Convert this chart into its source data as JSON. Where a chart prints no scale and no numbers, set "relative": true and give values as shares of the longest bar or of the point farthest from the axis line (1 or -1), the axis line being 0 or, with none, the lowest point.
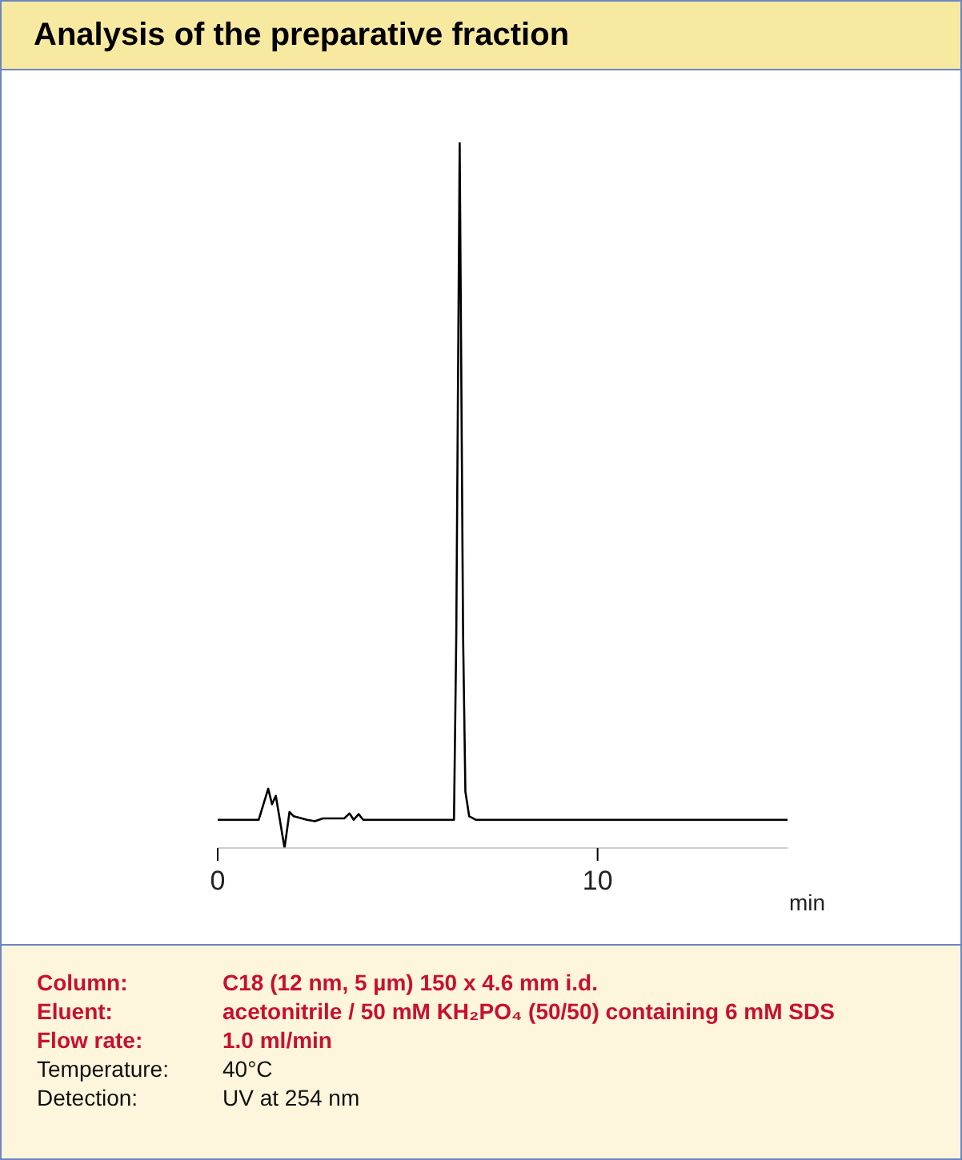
{
  "chart_data": {
    "type": "line",
    "title": "Analysis of the preparative fraction",
    "xlabel": "min",
    "relative": true,
    "tick_labels": "x",
    "xlim": [
      0,
      15
    ],
    "xticks": [
      0,
      10
    ],
    "color": "#000000",
    "x": [
      0,
      1.08,
      1.33,
      1.43,
      1.53,
      1.76,
      1.89,
      2.0,
      2.35,
      2.56,
      2.77,
      3.33,
      3.47,
      3.58,
      3.71,
      3.83,
      6.22,
      6.28,
      6.37,
      6.46,
      6.52,
      6.62,
      6.79,
      15
    ],
    "values": [
      0.04,
      0.04,
      0.084,
      0.062,
      0.074,
      0,
      0.051,
      0.045,
      0.04,
      0.038,
      0.042,
      0.042,
      0.049,
      0.04,
      0.048,
      0.04,
      0.04,
      0.3,
      1,
      0.3,
      0.08,
      0.045,
      0.04,
      0.04
    ],
    "annotations": [
      "Column: C18 (12 nm, 5 µm) 150 x 4.6 mm i.d.",
      "Eluent: acetonitrile / 50 mM KH₂PO₄ (50/50) containing 6 mM SDS",
      "Flow rate: 1.0 ml/min",
      "Temperature: 40°C",
      "Detection: UV at 254 nm"
    ]
  }
}
